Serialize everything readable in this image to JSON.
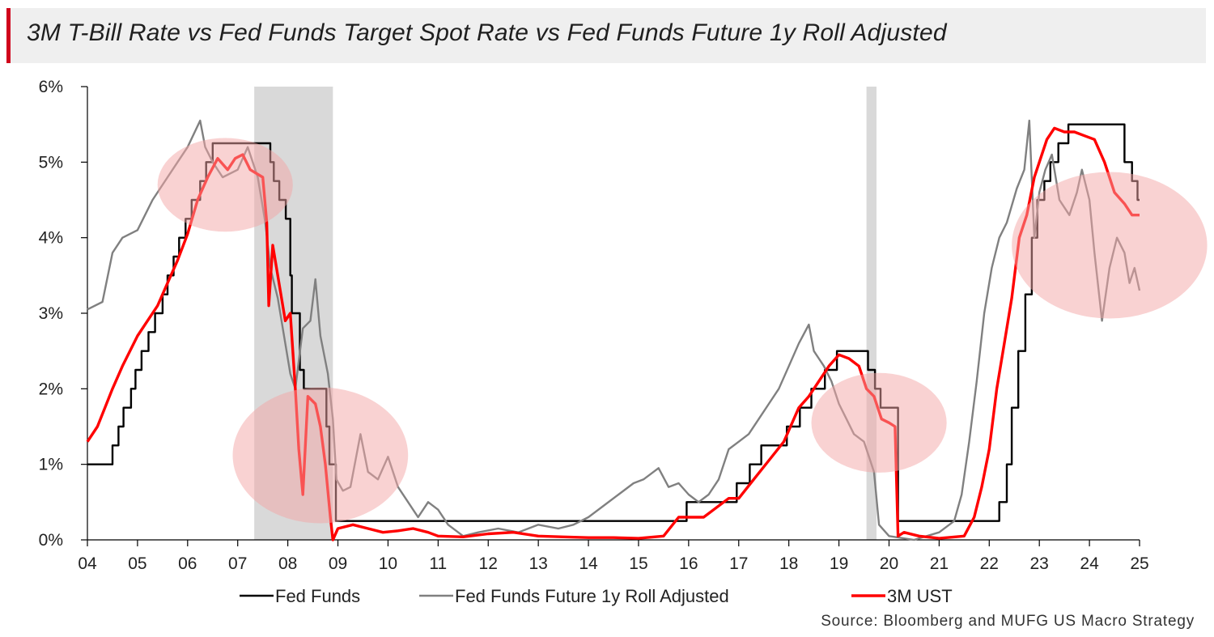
{
  "title": "3M T-Bill Rate vs Fed Funds Target Spot Rate vs Fed Funds Future 1y Roll Adjusted",
  "source": "Source: Bloomberg and MUFG US Macro Strategy",
  "colors": {
    "fed_funds": "#000000",
    "future": "#808080",
    "ust": "#ff0000",
    "recession": "#d9d9d9",
    "highlight": "#f4a6a6",
    "accent": "#d0021b"
  },
  "chart_data": {
    "type": "line",
    "title": "3M T-Bill Rate vs Fed Funds Target Spot Rate vs Fed Funds Future 1y Roll Adjusted",
    "xlabel": "",
    "ylabel": "",
    "xlim": [
      2004,
      2025
    ],
    "ylim": [
      0,
      6
    ],
    "x_tick_labels": [
      "04",
      "05",
      "06",
      "07",
      "08",
      "09",
      "10",
      "11",
      "12",
      "13",
      "14",
      "15",
      "16",
      "17",
      "18",
      "19",
      "20",
      "21",
      "22",
      "23",
      "24",
      "25"
    ],
    "y_tick_labels": [
      "0%",
      "1%",
      "2%",
      "3%",
      "4%",
      "5%",
      "6%"
    ],
    "grid": false,
    "legend_position": "bottom",
    "recession_bands": [
      [
        2007.33,
        2008.9
      ],
      [
        2019.55,
        2019.75
      ]
    ],
    "highlight_ellipses": [
      {
        "center": [
          2006.75,
          4.7
        ],
        "radius": [
          1.35,
          0.62
        ]
      },
      {
        "center": [
          2008.65,
          1.12
        ],
        "radius": [
          1.75,
          0.9
        ]
      },
      {
        "center": [
          2019.8,
          1.55
        ],
        "radius": [
          1.35,
          0.66
        ]
      },
      {
        "center": [
          2024.4,
          3.9
        ],
        "radius": [
          1.95,
          0.97
        ]
      }
    ],
    "series": [
      {
        "name": "Fed Funds",
        "step": true,
        "points": [
          [
            2004.0,
            1.0
          ],
          [
            2004.5,
            1.25
          ],
          [
            2004.62,
            1.5
          ],
          [
            2004.72,
            1.75
          ],
          [
            2004.87,
            2.0
          ],
          [
            2004.96,
            2.25
          ],
          [
            2005.08,
            2.5
          ],
          [
            2005.22,
            2.75
          ],
          [
            2005.35,
            3.0
          ],
          [
            2005.5,
            3.25
          ],
          [
            2005.6,
            3.5
          ],
          [
            2005.72,
            3.75
          ],
          [
            2005.83,
            4.0
          ],
          [
            2005.96,
            4.25
          ],
          [
            2006.08,
            4.5
          ],
          [
            2006.25,
            4.75
          ],
          [
            2006.37,
            5.0
          ],
          [
            2006.5,
            5.25
          ],
          [
            2007.65,
            5.0
          ],
          [
            2007.72,
            4.75
          ],
          [
            2007.83,
            4.5
          ],
          [
            2007.96,
            4.25
          ],
          [
            2008.05,
            3.5
          ],
          [
            2008.08,
            3.0
          ],
          [
            2008.24,
            2.25
          ],
          [
            2008.32,
            2.0
          ],
          [
            2008.77,
            1.5
          ],
          [
            2008.83,
            1.0
          ],
          [
            2008.96,
            0.25
          ],
          [
            2015.96,
            0.5
          ],
          [
            2016.96,
            0.75
          ],
          [
            2017.22,
            1.0
          ],
          [
            2017.45,
            1.25
          ],
          [
            2017.96,
            1.5
          ],
          [
            2018.22,
            1.75
          ],
          [
            2018.45,
            2.0
          ],
          [
            2018.72,
            2.25
          ],
          [
            2018.96,
            2.5
          ],
          [
            2019.58,
            2.25
          ],
          [
            2019.72,
            2.0
          ],
          [
            2019.83,
            1.75
          ],
          [
            2020.18,
            0.25
          ],
          [
            2022.2,
            0.5
          ],
          [
            2022.35,
            1.0
          ],
          [
            2022.45,
            1.75
          ],
          [
            2022.58,
            2.5
          ],
          [
            2022.72,
            3.25
          ],
          [
            2022.85,
            4.0
          ],
          [
            2022.96,
            4.5
          ],
          [
            2023.1,
            4.75
          ],
          [
            2023.22,
            5.0
          ],
          [
            2023.38,
            5.25
          ],
          [
            2023.58,
            5.5
          ],
          [
            2024.7,
            5.0
          ],
          [
            2024.85,
            4.75
          ],
          [
            2024.96,
            4.5
          ],
          [
            2025.0,
            4.5
          ]
        ]
      },
      {
        "name": "Fed Funds Future 1y Roll Adjusted",
        "points": [
          [
            2004.0,
            3.05
          ],
          [
            2004.3,
            3.15
          ],
          [
            2004.5,
            3.8
          ],
          [
            2004.7,
            4.0
          ],
          [
            2005.0,
            4.1
          ],
          [
            2005.3,
            4.5
          ],
          [
            2005.6,
            4.8
          ],
          [
            2005.8,
            5.0
          ],
          [
            2006.0,
            5.2
          ],
          [
            2006.25,
            5.55
          ],
          [
            2006.35,
            5.2
          ],
          [
            2006.5,
            5.0
          ],
          [
            2006.7,
            4.8
          ],
          [
            2007.0,
            4.9
          ],
          [
            2007.2,
            5.2
          ],
          [
            2007.4,
            4.8
          ],
          [
            2007.55,
            4.2
          ],
          [
            2007.65,
            3.6
          ],
          [
            2007.8,
            3.2
          ],
          [
            2007.95,
            2.6
          ],
          [
            2008.05,
            2.2
          ],
          [
            2008.15,
            2.0
          ],
          [
            2008.3,
            2.8
          ],
          [
            2008.45,
            2.9
          ],
          [
            2008.55,
            3.45
          ],
          [
            2008.65,
            2.7
          ],
          [
            2008.8,
            2.2
          ],
          [
            2008.9,
            1.6
          ],
          [
            2008.97,
            0.8
          ],
          [
            2009.1,
            0.65
          ],
          [
            2009.25,
            0.7
          ],
          [
            2009.45,
            1.4
          ],
          [
            2009.6,
            0.9
          ],
          [
            2009.8,
            0.8
          ],
          [
            2010.0,
            1.1
          ],
          [
            2010.2,
            0.7
          ],
          [
            2010.4,
            0.5
          ],
          [
            2010.6,
            0.3
          ],
          [
            2010.8,
            0.5
          ],
          [
            2011.0,
            0.4
          ],
          [
            2011.2,
            0.2
          ],
          [
            2011.5,
            0.05
          ],
          [
            2011.8,
            0.1
          ],
          [
            2012.2,
            0.15
          ],
          [
            2012.6,
            0.1
          ],
          [
            2013.0,
            0.2
          ],
          [
            2013.4,
            0.15
          ],
          [
            2013.7,
            0.2
          ],
          [
            2014.0,
            0.3
          ],
          [
            2014.3,
            0.45
          ],
          [
            2014.6,
            0.6
          ],
          [
            2014.9,
            0.75
          ],
          [
            2015.1,
            0.8
          ],
          [
            2015.4,
            0.95
          ],
          [
            2015.6,
            0.7
          ],
          [
            2015.8,
            0.75
          ],
          [
            2016.0,
            0.6
          ],
          [
            2016.2,
            0.5
          ],
          [
            2016.4,
            0.6
          ],
          [
            2016.6,
            0.8
          ],
          [
            2016.8,
            1.2
          ],
          [
            2017.0,
            1.3
          ],
          [
            2017.2,
            1.4
          ],
          [
            2017.4,
            1.6
          ],
          [
            2017.6,
            1.8
          ],
          [
            2017.8,
            2.0
          ],
          [
            2018.0,
            2.3
          ],
          [
            2018.2,
            2.6
          ],
          [
            2018.4,
            2.85
          ],
          [
            2018.5,
            2.5
          ],
          [
            2018.6,
            2.4
          ],
          [
            2018.7,
            2.3
          ],
          [
            2018.85,
            2.1
          ],
          [
            2019.0,
            1.8
          ],
          [
            2019.15,
            1.6
          ],
          [
            2019.3,
            1.4
          ],
          [
            2019.5,
            1.3
          ],
          [
            2019.6,
            1.1
          ],
          [
            2019.7,
            0.9
          ],
          [
            2019.8,
            0.2
          ],
          [
            2020.0,
            0.05
          ],
          [
            2020.5,
            0.0
          ],
          [
            2021.0,
            0.1
          ],
          [
            2021.3,
            0.25
          ],
          [
            2021.45,
            0.6
          ],
          [
            2021.6,
            1.3
          ],
          [
            2021.75,
            2.1
          ],
          [
            2021.9,
            3.0
          ],
          [
            2022.05,
            3.6
          ],
          [
            2022.2,
            4.0
          ],
          [
            2022.35,
            4.2
          ],
          [
            2022.55,
            4.65
          ],
          [
            2022.7,
            4.9
          ],
          [
            2022.8,
            5.55
          ],
          [
            2022.9,
            4.0
          ],
          [
            2023.0,
            4.6
          ],
          [
            2023.12,
            4.9
          ],
          [
            2023.25,
            5.1
          ],
          [
            2023.4,
            4.5
          ],
          [
            2023.6,
            4.3
          ],
          [
            2023.75,
            4.6
          ],
          [
            2023.85,
            4.9
          ],
          [
            2024.0,
            4.5
          ],
          [
            2024.1,
            3.8
          ],
          [
            2024.2,
            3.2
          ],
          [
            2024.25,
            2.9
          ],
          [
            2024.4,
            3.6
          ],
          [
            2024.55,
            4.0
          ],
          [
            2024.7,
            3.8
          ],
          [
            2024.8,
            3.4
          ],
          [
            2024.9,
            3.6
          ],
          [
            2025.0,
            3.3
          ]
        ]
      },
      {
        "name": "3M UST",
        "points": [
          [
            2004.0,
            1.3
          ],
          [
            2004.2,
            1.5
          ],
          [
            2004.5,
            2.0
          ],
          [
            2004.7,
            2.3
          ],
          [
            2005.0,
            2.7
          ],
          [
            2005.2,
            2.9
          ],
          [
            2005.4,
            3.1
          ],
          [
            2005.6,
            3.4
          ],
          [
            2005.8,
            3.7
          ],
          [
            2006.0,
            4.05
          ],
          [
            2006.2,
            4.5
          ],
          [
            2006.4,
            4.8
          ],
          [
            2006.6,
            5.05
          ],
          [
            2006.8,
            4.9
          ],
          [
            2006.95,
            5.05
          ],
          [
            2007.1,
            5.1
          ],
          [
            2007.25,
            4.9
          ],
          [
            2007.5,
            4.8
          ],
          [
            2007.58,
            4.2
          ],
          [
            2007.62,
            3.1
          ],
          [
            2007.7,
            3.9
          ],
          [
            2007.85,
            3.3
          ],
          [
            2007.95,
            2.9
          ],
          [
            2008.05,
            3.0
          ],
          [
            2008.15,
            2.0
          ],
          [
            2008.22,
            1.2
          ],
          [
            2008.3,
            0.6
          ],
          [
            2008.4,
            1.9
          ],
          [
            2008.55,
            1.8
          ],
          [
            2008.65,
            1.5
          ],
          [
            2008.75,
            1.0
          ],
          [
            2008.85,
            0.3
          ],
          [
            2008.9,
            0.0
          ],
          [
            2009.0,
            0.15
          ],
          [
            2009.3,
            0.2
          ],
          [
            2009.6,
            0.15
          ],
          [
            2009.9,
            0.1
          ],
          [
            2010.2,
            0.12
          ],
          [
            2010.5,
            0.15
          ],
          [
            2010.8,
            0.1
          ],
          [
            2011.0,
            0.05
          ],
          [
            2011.5,
            0.04
          ],
          [
            2012.0,
            0.08
          ],
          [
            2012.5,
            0.1
          ],
          [
            2013.0,
            0.05
          ],
          [
            2013.5,
            0.04
          ],
          [
            2014.0,
            0.03
          ],
          [
            2014.5,
            0.03
          ],
          [
            2015.0,
            0.02
          ],
          [
            2015.5,
            0.05
          ],
          [
            2015.8,
            0.3
          ],
          [
            2016.0,
            0.3
          ],
          [
            2016.3,
            0.3
          ],
          [
            2016.5,
            0.4
          ],
          [
            2016.8,
            0.55
          ],
          [
            2017.0,
            0.55
          ],
          [
            2017.3,
            0.8
          ],
          [
            2017.6,
            1.05
          ],
          [
            2017.9,
            1.3
          ],
          [
            2018.0,
            1.45
          ],
          [
            2018.2,
            1.75
          ],
          [
            2018.4,
            1.9
          ],
          [
            2018.6,
            2.1
          ],
          [
            2018.8,
            2.3
          ],
          [
            2019.0,
            2.45
          ],
          [
            2019.2,
            2.4
          ],
          [
            2019.4,
            2.3
          ],
          [
            2019.55,
            2.0
          ],
          [
            2019.7,
            1.9
          ],
          [
            2019.85,
            1.6
          ],
          [
            2020.0,
            1.55
          ],
          [
            2020.12,
            1.5
          ],
          [
            2020.18,
            0.05
          ],
          [
            2020.3,
            0.1
          ],
          [
            2020.6,
            0.05
          ],
          [
            2021.0,
            0.02
          ],
          [
            2021.5,
            0.05
          ],
          [
            2021.7,
            0.3
          ],
          [
            2021.85,
            0.7
          ],
          [
            2022.0,
            1.2
          ],
          [
            2022.15,
            2.0
          ],
          [
            2022.3,
            2.6
          ],
          [
            2022.45,
            3.2
          ],
          [
            2022.6,
            4.0
          ],
          [
            2022.75,
            4.3
          ],
          [
            2022.9,
            4.8
          ],
          [
            2023.0,
            5.0
          ],
          [
            2023.15,
            5.3
          ],
          [
            2023.3,
            5.45
          ],
          [
            2023.5,
            5.4
          ],
          [
            2023.7,
            5.4
          ],
          [
            2023.9,
            5.35
          ],
          [
            2024.1,
            5.3
          ],
          [
            2024.3,
            5.0
          ],
          [
            2024.5,
            4.6
          ],
          [
            2024.7,
            4.45
          ],
          [
            2024.85,
            4.3
          ],
          [
            2025.0,
            4.3
          ]
        ]
      }
    ]
  }
}
